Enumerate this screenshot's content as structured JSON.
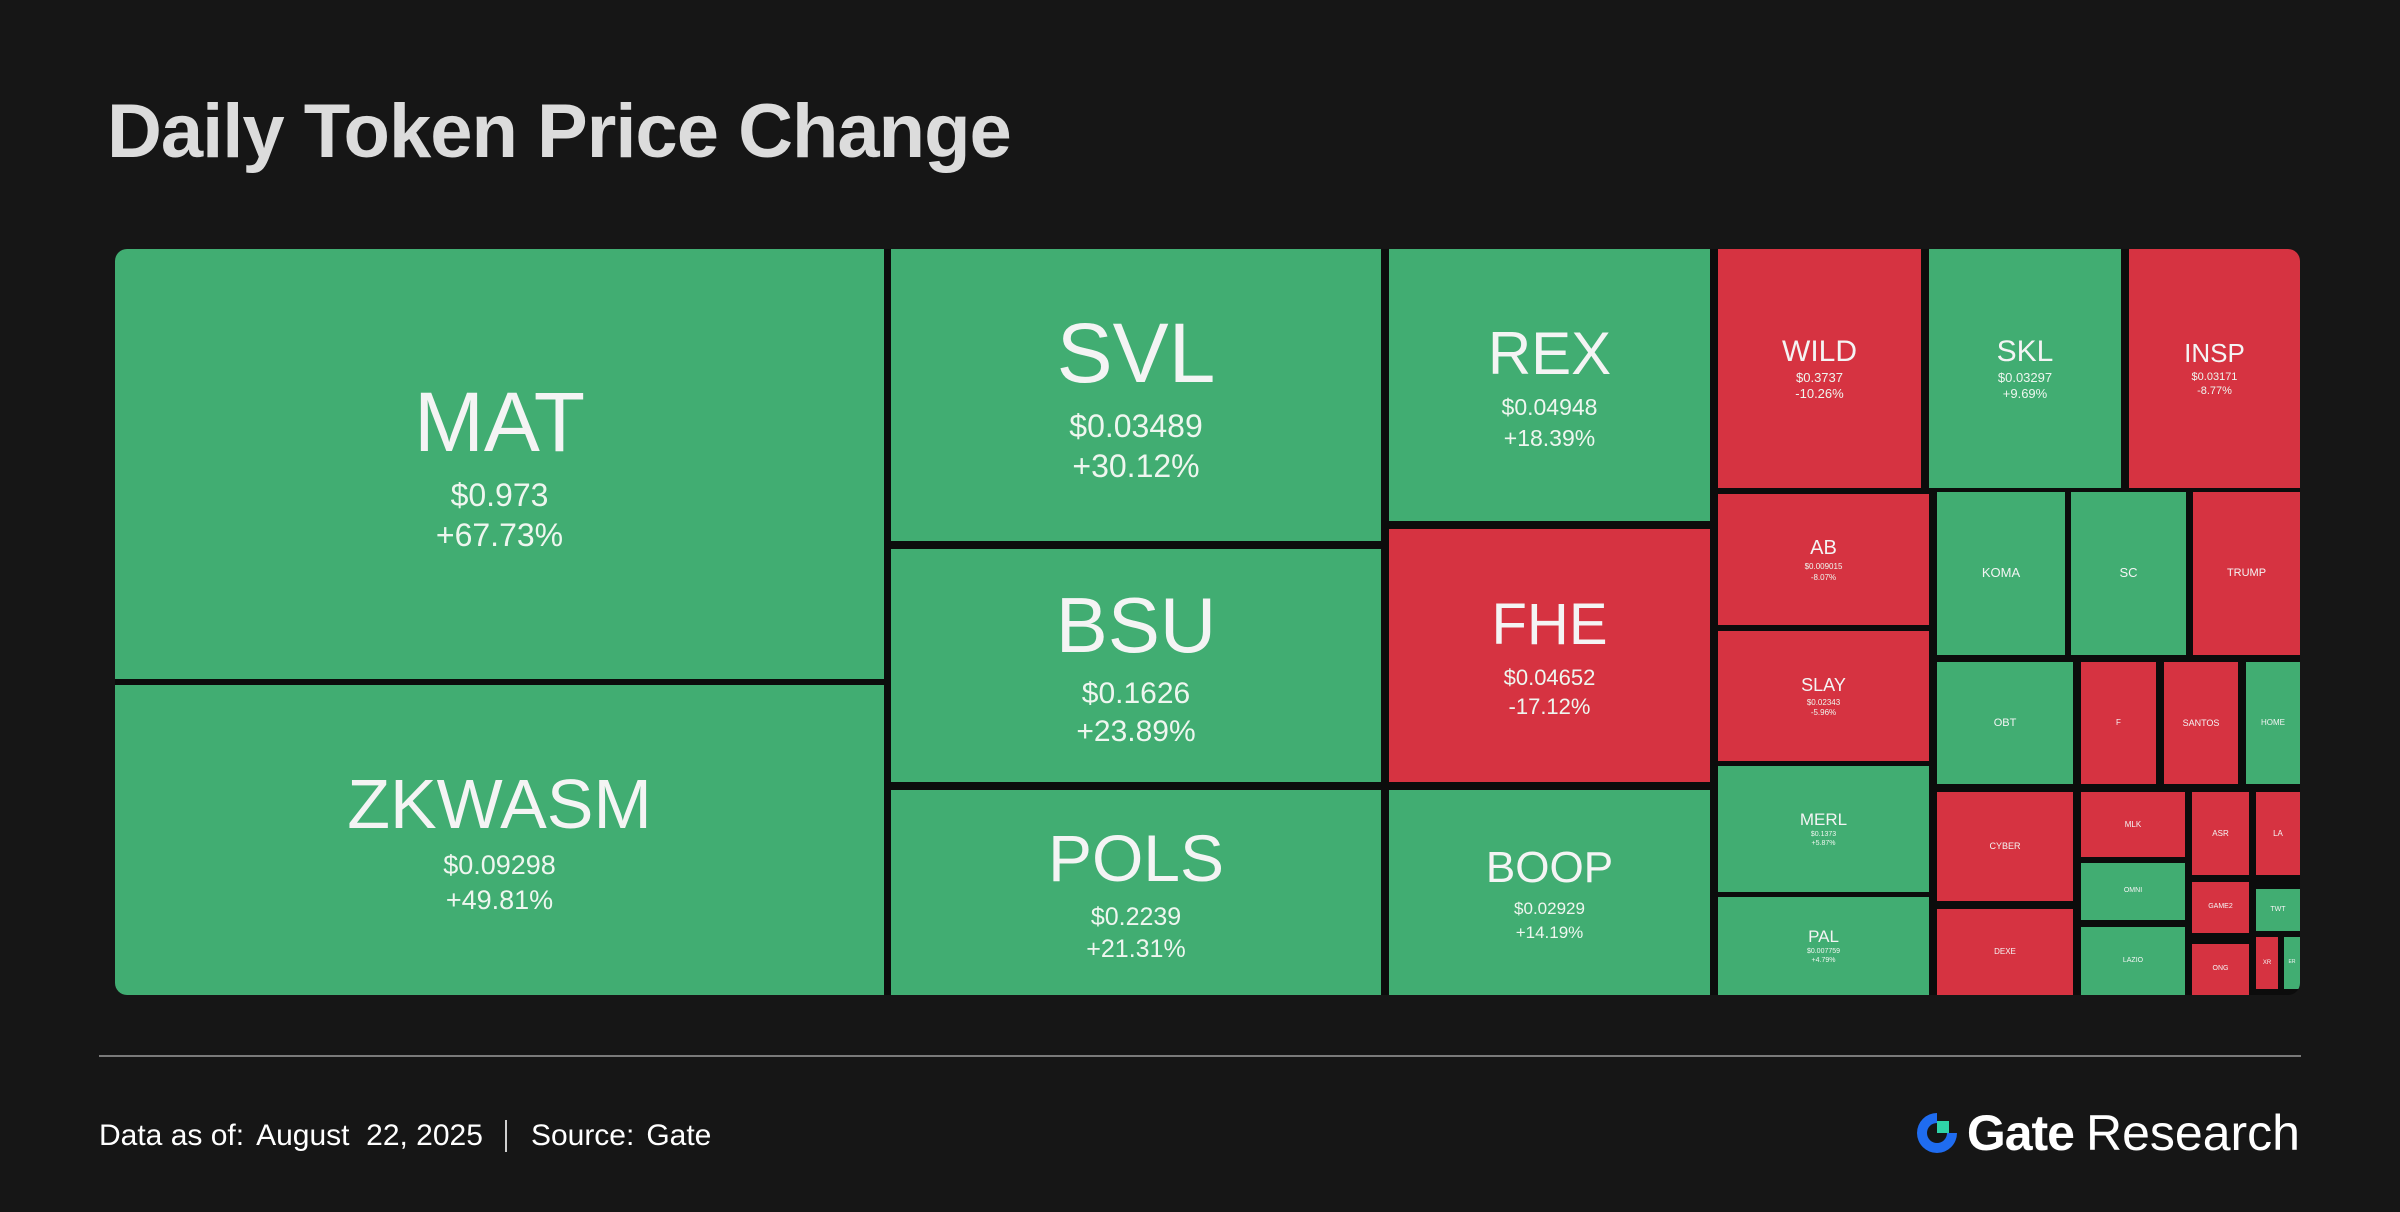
{
  "title": "Daily Token Price Change",
  "colors": {
    "up": "#41AD72",
    "down": "#D63341",
    "background": "#161616"
  },
  "footer": {
    "data_label": "Data as of:",
    "data_date": "August  22, 2025",
    "source_label": "Source:",
    "source_value": "Gate"
  },
  "brand": {
    "name": "Gate",
    "suffix": "Research",
    "icon": "gate-logo-icon"
  },
  "chart_data": {
    "type": "treemap",
    "items": [
      {
        "symbol": "MAT",
        "price": "$0.973",
        "change": "+67.73%",
        "dir": "up"
      },
      {
        "symbol": "ZKWASM",
        "price": "$0.09298",
        "change": "+49.81%",
        "dir": "up"
      },
      {
        "symbol": "SVL",
        "price": "$0.03489",
        "change": "+30.12%",
        "dir": "up"
      },
      {
        "symbol": "BSU",
        "price": "$0.1626",
        "change": "+23.89%",
        "dir": "up"
      },
      {
        "symbol": "POLS",
        "price": "$0.2239",
        "change": "+21.31%",
        "dir": "up"
      },
      {
        "symbol": "REX",
        "price": "$0.04948",
        "change": "+18.39%",
        "dir": "up"
      },
      {
        "symbol": "FHE",
        "price": "$0.04652",
        "change": "-17.12%",
        "dir": "down"
      },
      {
        "symbol": "BOOP",
        "price": "$0.02929",
        "change": "+14.19%",
        "dir": "up"
      },
      {
        "symbol": "WILD",
        "price": "$0.3737",
        "change": "-10.26%",
        "dir": "down"
      },
      {
        "symbol": "SKL",
        "price": "$0.03297",
        "change": "+9.69%",
        "dir": "up"
      },
      {
        "symbol": "INSP",
        "price": "$0.03171",
        "change": "-8.77%",
        "dir": "down"
      },
      {
        "symbol": "AB",
        "price": "$0.009015",
        "change": "-8.07%",
        "dir": "down"
      },
      {
        "symbol": "SLAY",
        "price": "$0.02343",
        "change": "-5.96%",
        "dir": "down"
      },
      {
        "symbol": "MERL",
        "price": "$0.1373",
        "change": "+5.87%",
        "dir": "up"
      },
      {
        "symbol": "PAL",
        "price": "$0.007759",
        "change": "+4.79%",
        "dir": "up"
      },
      {
        "symbol": "KOMA",
        "price": "",
        "change": "",
        "dir": "up"
      },
      {
        "symbol": "SC",
        "price": "",
        "change": "",
        "dir": "up"
      },
      {
        "symbol": "TRUMP",
        "price": "",
        "change": "",
        "dir": "down"
      },
      {
        "symbol": "OBT",
        "price": "",
        "change": "",
        "dir": "up"
      },
      {
        "symbol": "F",
        "price": "",
        "change": "",
        "dir": "down"
      },
      {
        "symbol": "SANTOS",
        "price": "",
        "change": "",
        "dir": "down"
      },
      {
        "symbol": "HOME",
        "price": "",
        "change": "",
        "dir": "up"
      },
      {
        "symbol": "CYBER",
        "price": "",
        "change": "",
        "dir": "down"
      },
      {
        "symbol": "MLK",
        "price": "",
        "change": "",
        "dir": "down"
      },
      {
        "symbol": "ASR",
        "price": "",
        "change": "",
        "dir": "down"
      },
      {
        "symbol": "LA",
        "price": "",
        "change": "",
        "dir": "down"
      },
      {
        "symbol": "OMNI",
        "price": "",
        "change": "",
        "dir": "up"
      },
      {
        "symbol": "GAME2",
        "price": "",
        "change": "",
        "dir": "down"
      },
      {
        "symbol": "TWT",
        "price": "",
        "change": "",
        "dir": "up"
      },
      {
        "symbol": "DEXE",
        "price": "",
        "change": "",
        "dir": "down"
      },
      {
        "symbol": "LAZIO",
        "price": "",
        "change": "",
        "dir": "up"
      },
      {
        "symbol": "ONG",
        "price": "",
        "change": "",
        "dir": "down"
      },
      {
        "symbol": "XR",
        "price": "",
        "change": "",
        "dir": "down"
      },
      {
        "symbol": "ER",
        "price": "",
        "change": "",
        "dir": "up"
      }
    ]
  }
}
